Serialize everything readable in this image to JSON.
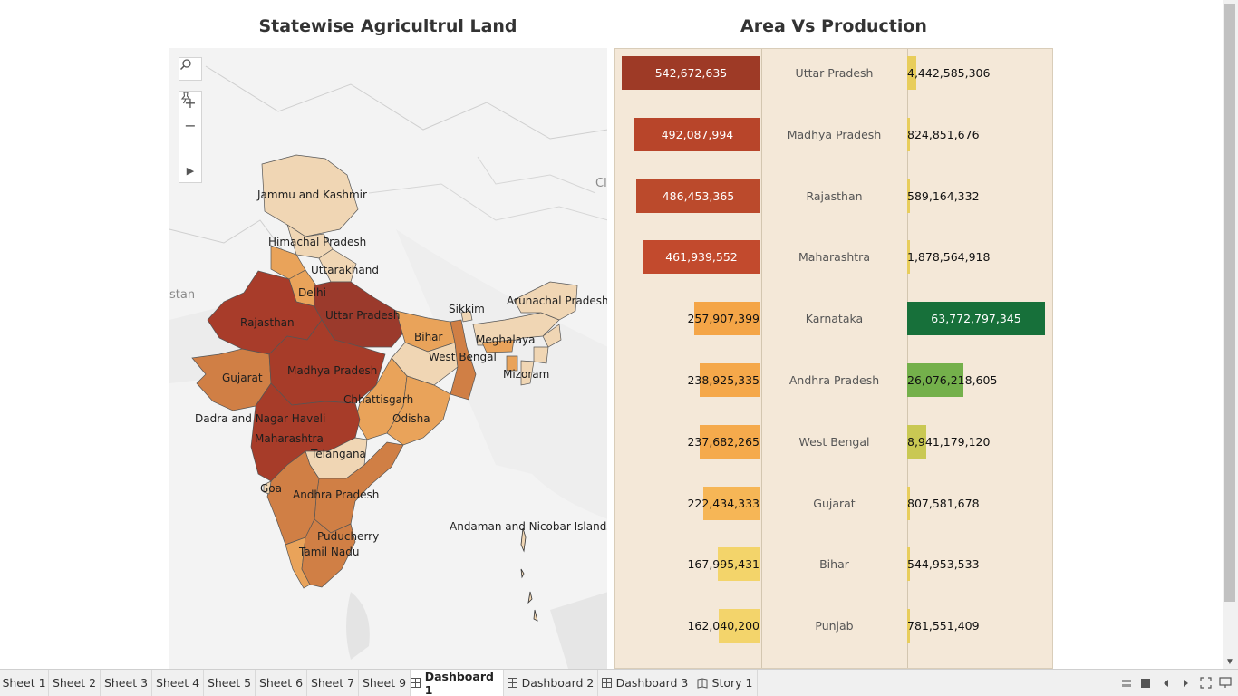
{
  "dashboard": {
    "map_title": "Statewise Agricultrul Land",
    "chart_title": "Area Vs Production"
  },
  "map": {
    "country_labels": [
      "stan",
      "Cl"
    ],
    "state_labels": [
      "Jammu and Kashmir",
      "Himachal Pradesh",
      "Uttarakhand",
      "Delhi",
      "Rajasthan",
      "Uttar Pradesh",
      "Sikkim",
      "Arunachal Pradesh",
      "Bihar",
      "Meghalaya",
      "West Bengal",
      "Mizoram",
      "Gujarat",
      "Madhya Pradesh",
      "Chhattisgarh",
      "Odisha",
      "Dadra and Nagar Haveli",
      "Maharashtra",
      "Telangana",
      "Goa",
      "Andhra Pradesh",
      "Puducherry",
      "Tamil Nadu",
      "Andaman and Nicobar Islands"
    ],
    "tools": {
      "search": "search-icon",
      "zoom_in": "+",
      "zoom_out": "−",
      "pin": "pin-icon",
      "expand": "▶"
    },
    "colors": {
      "darkest": "#9b3a2c",
      "dark": "#b0442e",
      "mid": "#d07f45",
      "orange": "#e9a35a",
      "light": "#f0d6b4",
      "base": "#e8e8e8"
    }
  },
  "chart_data": {
    "type": "bar",
    "series": [
      {
        "name": "Area",
        "values": [
          542672635,
          492087994,
          486453365,
          461939552,
          257907399,
          238925335,
          237682265,
          222434333,
          167995431,
          162040200
        ]
      },
      {
        "name": "Production",
        "values": [
          4442585306,
          824851676,
          589164332,
          1878564918,
          63772797345,
          26076218605,
          8941179120,
          807581678,
          544953533,
          781551409
        ]
      }
    ],
    "categories": [
      "Uttar Pradesh",
      "Madhya Pradesh",
      "Rajasthan",
      "Maharashtra",
      "Karnataka",
      "Andhra Pradesh",
      "West Bengal",
      "Gujarat",
      "Bihar",
      "Punjab"
    ],
    "area_labels": [
      "542,672,635",
      "492,087,994",
      "486,453,365",
      "461,939,552",
      "257,907,399",
      "238,925,335",
      "237,682,265",
      "222,434,333",
      "167,995,431",
      "162,040,200"
    ],
    "production_labels": [
      "4,442,585,306",
      "824,851,676",
      "589,164,332",
      "1,878,564,918",
      "63,772,797,345",
      "26,076,218,605",
      "8,941,179,120",
      "807,581,678",
      "544,953,533",
      "781,551,409"
    ],
    "area_colors": [
      "#9e3a26",
      "#b8452a",
      "#bb4a2c",
      "#c24a2d",
      "#f4a547",
      "#f5a84a",
      "#f5aa4c",
      "#f6b656",
      "#f3d46a",
      "#f3d46b"
    ],
    "production_colors": [
      "#e8cd5b",
      "#e8cd5b",
      "#e8cd5b",
      "#e8cd5b",
      "#17703a",
      "#74b04b",
      "#c9c853",
      "#e8cd5b",
      "#e8cd5b",
      "#e8cd5b"
    ]
  },
  "tabs": [
    {
      "label": "Sheet 1",
      "kind": "sheet"
    },
    {
      "label": "Sheet 2",
      "kind": "sheet"
    },
    {
      "label": "Sheet 3",
      "kind": "sheet"
    },
    {
      "label": "Sheet 4",
      "kind": "sheet"
    },
    {
      "label": "Sheet 5",
      "kind": "sheet"
    },
    {
      "label": "Sheet 6",
      "kind": "sheet"
    },
    {
      "label": "Sheet 7",
      "kind": "sheet"
    },
    {
      "label": "Sheet 9",
      "kind": "sheet"
    },
    {
      "label": "Dashboard 1",
      "kind": "dashboard",
      "active": true
    },
    {
      "label": "Dashboard 2",
      "kind": "dashboard"
    },
    {
      "label": "Dashboard 3",
      "kind": "dashboard"
    },
    {
      "label": "Story 1",
      "kind": "story"
    }
  ],
  "nav_controls": [
    "film-strip-icon",
    "grid-view-icon",
    "prev-icon",
    "next-icon",
    "fit-screen-icon",
    "presentation-icon"
  ]
}
